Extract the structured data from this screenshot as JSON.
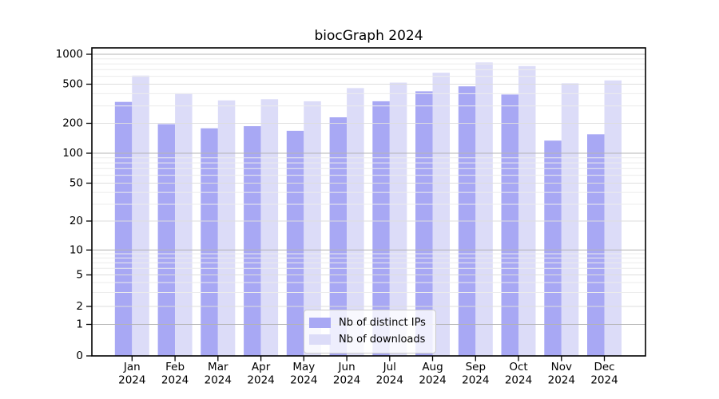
{
  "title": "biocGraph 2024",
  "colors": {
    "distinct_ips": "#a8a8f4",
    "downloads": "#dcdcf8",
    "axis": "#000000",
    "grid_major": "#b4b4b4",
    "grid_labeled": "#dedede",
    "grid_minor": "#ececec",
    "legend_border": "#cccccc"
  },
  "chart_data": {
    "type": "bar",
    "title": "biocGraph 2024",
    "categories": [
      "Jan",
      "Feb",
      "Mar",
      "Apr",
      "May",
      "Jun",
      "Jul",
      "Aug",
      "Sep",
      "Oct",
      "Nov",
      "Dec"
    ],
    "x_tick_second_line": "2024",
    "series": [
      {
        "name": "Nb of distinct IPs",
        "color": "#a8a8f4",
        "values": [
          330,
          196,
          178,
          187,
          168,
          230,
          335,
          423,
          475,
          393,
          134,
          155
        ]
      },
      {
        "name": "Nb of downloads",
        "color": "#dcdcf8",
        "values": [
          610,
          404,
          342,
          352,
          335,
          456,
          519,
          653,
          826,
          760,
          510,
          545
        ]
      }
    ],
    "yticks": [
      0,
      1,
      2,
      5,
      10,
      20,
      50,
      100,
      200,
      500,
      1000
    ],
    "yscale": "log-like with 0 baseline",
    "ylim": [
      0,
      1160
    ],
    "xlabel": "",
    "ylabel": "",
    "grid": true,
    "legend_position": "inside bottom-center"
  }
}
